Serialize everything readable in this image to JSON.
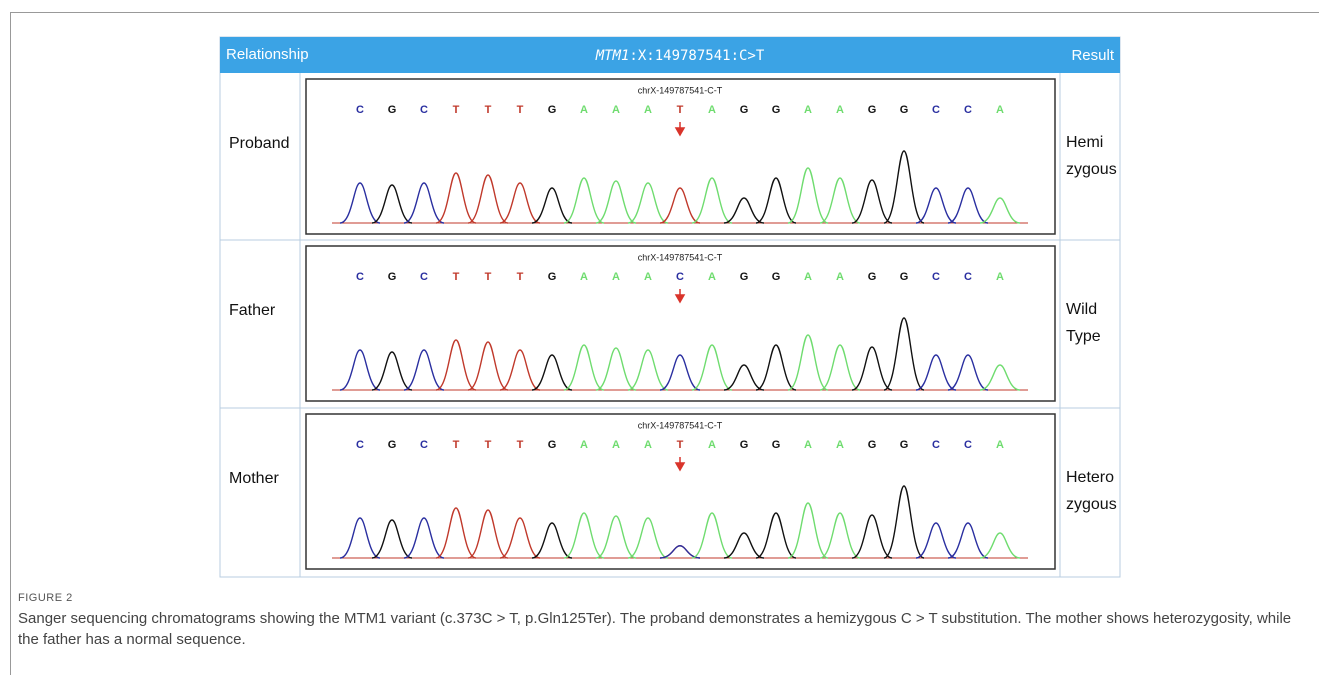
{
  "header": {
    "relationship": "Relationship",
    "gene": "MTM1",
    "variant": ":X:149787541:C>T",
    "result": "Result"
  },
  "rows": [
    {
      "relationship": "Proband",
      "trace_label": "chrX-149787541-C-T",
      "bases": [
        "C",
        "G",
        "C",
        "T",
        "T",
        "T",
        "G",
        "A",
        "A",
        "A",
        "T",
        "A",
        "G",
        "G",
        "A",
        "A",
        "G",
        "G",
        "C",
        "C",
        "A"
      ],
      "result": [
        "Hemi",
        "zygous"
      ]
    },
    {
      "relationship": "Father",
      "trace_label": "chrX-149787541-C-T",
      "bases": [
        "C",
        "G",
        "C",
        "T",
        "T",
        "T",
        "G",
        "A",
        "A",
        "A",
        "C",
        "A",
        "G",
        "G",
        "A",
        "A",
        "G",
        "G",
        "C",
        "C",
        "A"
      ],
      "result": [
        "Wild",
        "Type"
      ]
    },
    {
      "relationship": "Mother",
      "trace_label": "chrX-149787541-C-T",
      "bases": [
        "C",
        "G",
        "C",
        "T",
        "T",
        "T",
        "G",
        "A",
        "A",
        "A",
        "T",
        "A",
        "G",
        "G",
        "A",
        "A",
        "G",
        "G",
        "C",
        "C",
        "A"
      ],
      "result": [
        "Hetero",
        "zygous"
      ]
    }
  ],
  "caption": {
    "label": "FIGURE 2",
    "text": "Sanger sequencing chromatograms showing the MTM1 variant (c.373C > T, p.Gln125Ter). The proband demonstrates a hemizygous C > T substitution. The mother shows heterozygosity, while the father has a normal sequence."
  }
}
